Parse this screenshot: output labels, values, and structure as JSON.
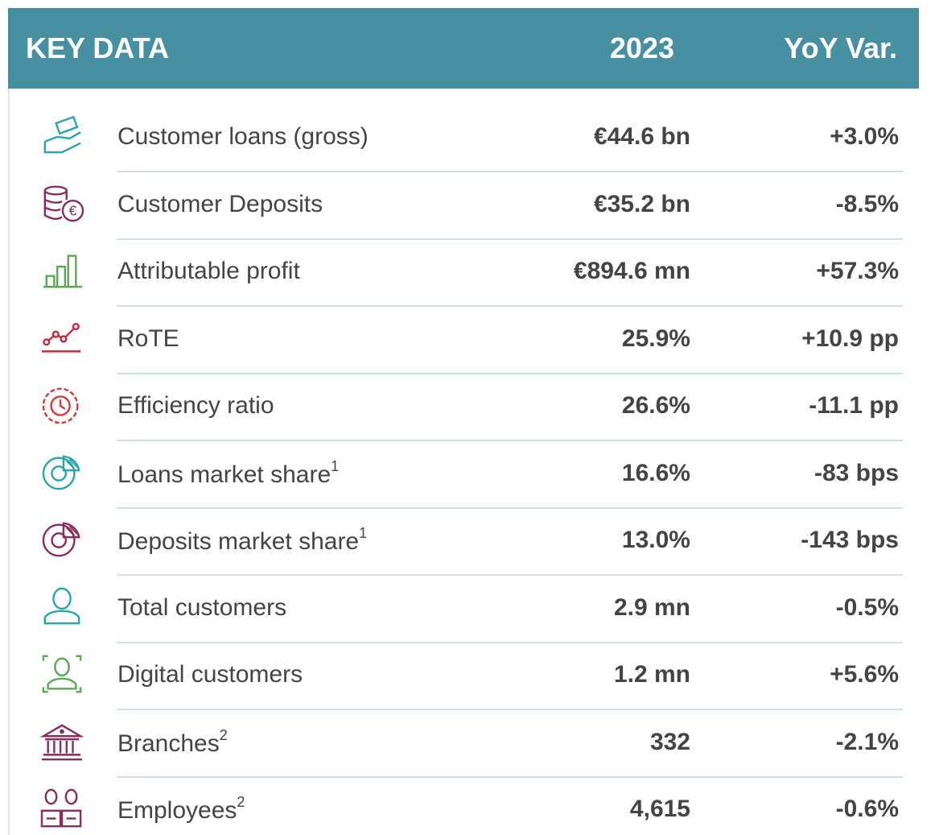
{
  "header": {
    "title": "KEY DATA",
    "year": "2023",
    "change": "YoY Var."
  },
  "table": {
    "rows": [
      {
        "label": "Customer loans (gross)",
        "value": "€44.6 bn",
        "change": "+3.0%"
      },
      {
        "label": "Customer Deposits",
        "value": "€35.2 bn",
        "change": "-8.5%"
      },
      {
        "label": "Attributable profit",
        "value": "€894.6 mn",
        "change": "+57.3%"
      },
      {
        "label": "RoTE",
        "value": "25.9%",
        "change": "+10.9 pp"
      },
      {
        "label": "Efficiency ratio",
        "value": "26.6%",
        "change": "-11.1 pp"
      },
      {
        "label": "Loans market share",
        "note": "1",
        "value": "16.6%",
        "change": "-83 bps"
      },
      {
        "label": "Deposits market share",
        "note": "1",
        "value": "13.0%",
        "change": "-143 bps"
      },
      {
        "label": "Total customers",
        "value": "2.9 mn",
        "change": "-0.5%"
      },
      {
        "label": "Digital customers",
        "value": "1.2 mn",
        "change": "+5.6%"
      },
      {
        "label": "Branches",
        "note": "2",
        "value": "332",
        "change": "-2.1%"
      },
      {
        "label": "Employees",
        "note": "2",
        "value": "4,615",
        "change": "-0.6%"
      }
    ]
  }
}
